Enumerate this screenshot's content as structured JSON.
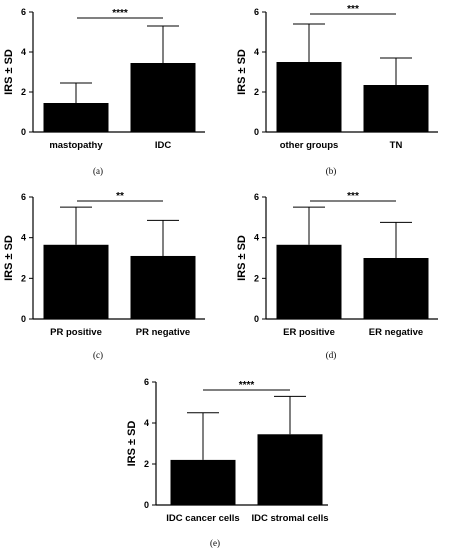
{
  "chart_data": [
    {
      "type": "bar",
      "caption": "(a)",
      "categories": [
        "mastopathy",
        "IDC"
      ],
      "values": [
        1.45,
        3.45
      ],
      "errors": [
        1.0,
        1.85
      ],
      "ylabel": "IRS ± SD",
      "ylim": [
        0,
        6
      ],
      "yticks": [
        "0",
        "2",
        "4",
        "6"
      ],
      "significance": "****",
      "bar_color": "#000000"
    },
    {
      "type": "bar",
      "caption": "(b)",
      "categories": [
        "other groups",
        "TN"
      ],
      "values": [
        3.5,
        2.35
      ],
      "errors": [
        1.9,
        1.35
      ],
      "ylabel": "IRS ± SD",
      "ylim": [
        0,
        6
      ],
      "yticks": [
        "0",
        "2",
        "4",
        "6"
      ],
      "significance": "***",
      "bar_color": "#000000"
    },
    {
      "type": "bar",
      "caption": "(c)",
      "categories": [
        "PR positive",
        "PR negative"
      ],
      "values": [
        3.65,
        3.1
      ],
      "errors": [
        1.85,
        1.75
      ],
      "ylabel": "IRS ± SD",
      "ylim": [
        0,
        6
      ],
      "yticks": [
        "0",
        "2",
        "4",
        "6"
      ],
      "significance": "**",
      "bar_color": "#000000"
    },
    {
      "type": "bar",
      "caption": "(d)",
      "categories": [
        "ER positive",
        "ER negative"
      ],
      "values": [
        3.65,
        3.0
      ],
      "errors": [
        1.85,
        1.75
      ],
      "ylabel": "IRS ± SD",
      "ylim": [
        0,
        6
      ],
      "yticks": [
        "0",
        "2",
        "4",
        "6"
      ],
      "significance": "***",
      "bar_color": "#000000"
    },
    {
      "type": "bar",
      "caption": "(e)",
      "categories": [
        "IDC cancer cells",
        "IDC stromal cells"
      ],
      "values": [
        2.2,
        3.45
      ],
      "errors": [
        2.3,
        1.85
      ],
      "ylabel": "IRS ± SD",
      "ylim": [
        0,
        6
      ],
      "yticks": [
        "0",
        "2",
        "4",
        "6"
      ],
      "significance": "****",
      "bar_color": "#000000"
    }
  ]
}
